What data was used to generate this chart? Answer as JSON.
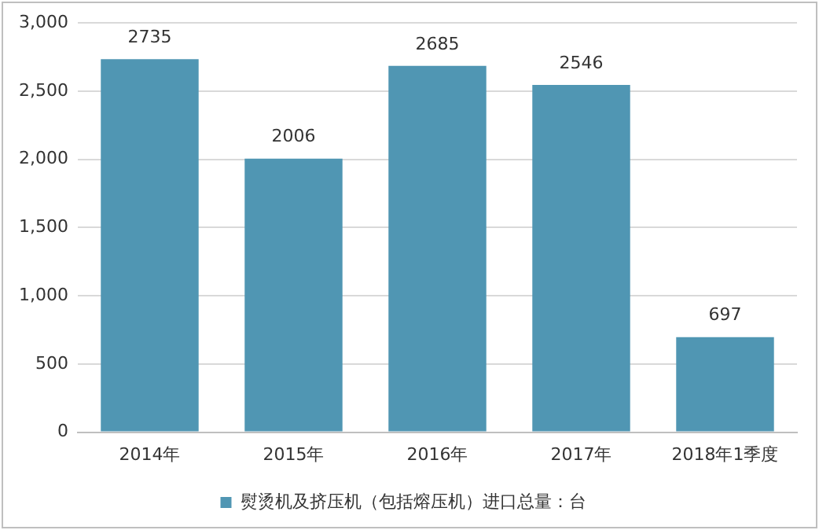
{
  "chart_data": {
    "type": "bar",
    "categories": [
      "2014年",
      "2015年",
      "2016年",
      "2017年",
      "2018年1季度"
    ],
    "series": [
      {
        "name": "熨烫机及挤压机（包括熔压机）进口总量：台",
        "color": "#5096b3",
        "values": [
          2735,
          2006,
          2685,
          2546,
          697
        ]
      }
    ],
    "ylim": [
      0,
      3000
    ],
    "yticks": [
      0,
      500,
      {
        "value": 1000,
        "label": "1,000"
      },
      {
        "value": 1500,
        "label": "1,500"
      },
      {
        "value": 2000,
        "label": "2,000"
      },
      {
        "value": 2500,
        "label": "2,500"
      },
      {
        "value": 3000,
        "label": "3,000"
      }
    ],
    "grid": "y",
    "legend": "bottom",
    "data_labels": true
  }
}
